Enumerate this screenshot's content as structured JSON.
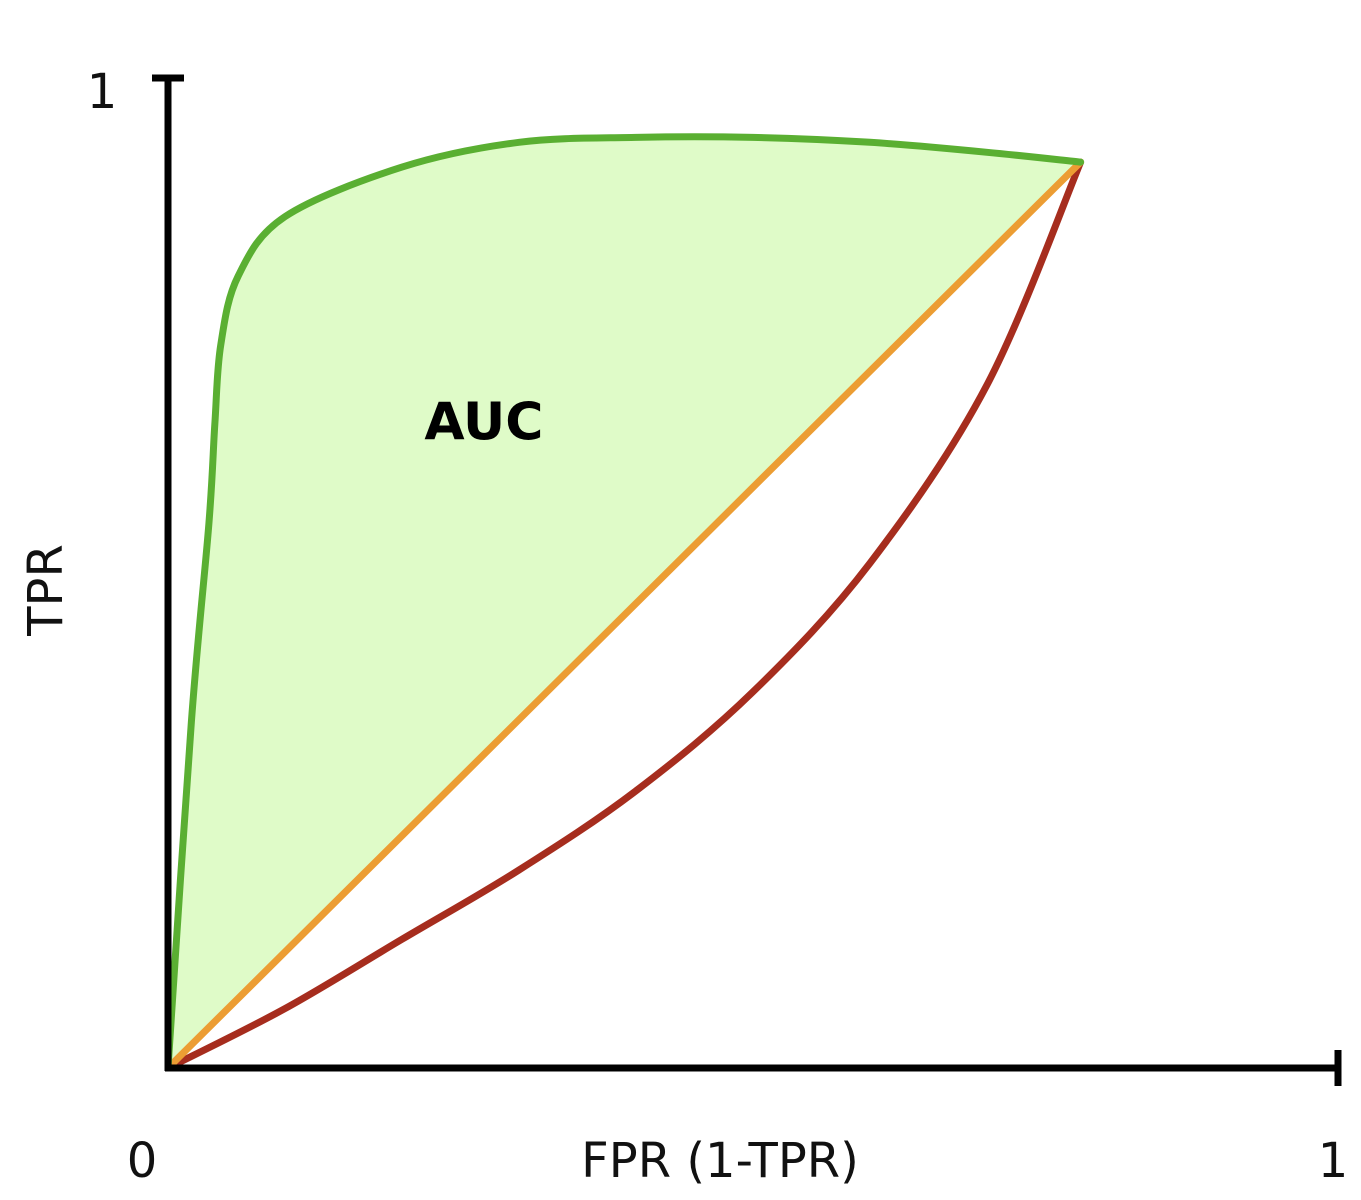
{
  "chart_data": {
    "type": "line",
    "x_axis": {
      "label": "FPR (1-TPR)",
      "range": [
        0,
        1
      ],
      "ticks": [
        {
          "value": 0,
          "label": "0"
        },
        {
          "value": 1,
          "label": "1"
        }
      ]
    },
    "y_axis": {
      "label": "TPR",
      "range": [
        0,
        1
      ],
      "ticks": [
        {
          "value": 1,
          "label": "1"
        }
      ]
    },
    "annotations": [
      {
        "text": "AUC",
        "x": 0.27,
        "y": 0.635
      }
    ],
    "grid": false,
    "legend": "none",
    "colors": {
      "good": "#5aaf32",
      "random": "#ec9d33",
      "poor": "#a62d1e",
      "fill": "#dffbc8",
      "axis": "#000000"
    },
    "series": [
      {
        "key": "good",
        "color": "#5aaf32",
        "fill_to": "random",
        "x": [
          0,
          0.02,
          0.035,
          0.04,
          0.045,
          0.06,
          0.1,
          0.2,
          0.3,
          0.4,
          0.5,
          0.6,
          0.7,
          0.78
        ],
        "y": [
          0,
          0.35,
          0.55,
          0.65,
          0.73,
          0.8,
          0.86,
          0.91,
          0.935,
          0.94,
          0.94,
          0.935,
          0.925,
          0.915
        ]
      },
      {
        "key": "random",
        "color": "#ec9d33",
        "x": [
          0,
          0.78
        ],
        "y": [
          0,
          0.915
        ]
      },
      {
        "key": "poor",
        "color": "#a62d1e",
        "x": [
          0,
          0.1,
          0.2,
          0.3,
          0.4,
          0.5,
          0.6,
          0.7,
          0.78
        ],
        "y": [
          0,
          0.06,
          0.13,
          0.2,
          0.28,
          0.38,
          0.51,
          0.69,
          0.915
        ]
      }
    ]
  }
}
